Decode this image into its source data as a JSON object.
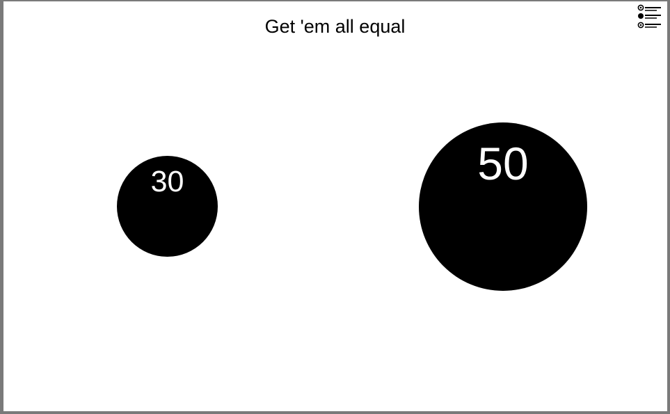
{
  "game": {
    "title": "Get 'em all equal",
    "background_color": "#ffffff",
    "circle_color": "#000000",
    "label_color": "#ffffff"
  },
  "menu": {
    "icon": "radio-list-menu-icon"
  },
  "circles": [
    {
      "value": "30"
    },
    {
      "value": "50"
    }
  ]
}
